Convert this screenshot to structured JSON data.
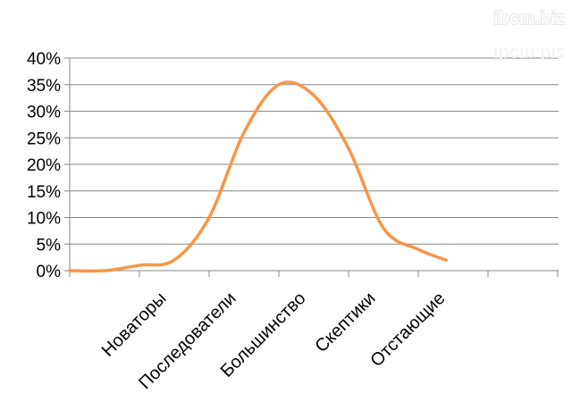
{
  "watermark": "ibcm.biz",
  "chart_data": {
    "type": "line",
    "categories": [
      "Новаторы",
      "Последователи",
      "Большинство",
      "Скептики",
      "Отстающие"
    ],
    "y_ticks": [
      "0%",
      "5%",
      "10%",
      "15%",
      "20%",
      "25%",
      "30%",
      "35%",
      "40%"
    ],
    "ylim": [
      0,
      40
    ],
    "x": [
      0,
      0.5,
      1,
      1.5,
      2,
      2.5,
      3,
      3.5,
      4,
      4.5,
      5,
      5.4
    ],
    "values": [
      0,
      0,
      1,
      2,
      10,
      26,
      35,
      33,
      23,
      8,
      4,
      2
    ],
    "series_color": "#f79646",
    "grid": true,
    "legend": "none"
  }
}
